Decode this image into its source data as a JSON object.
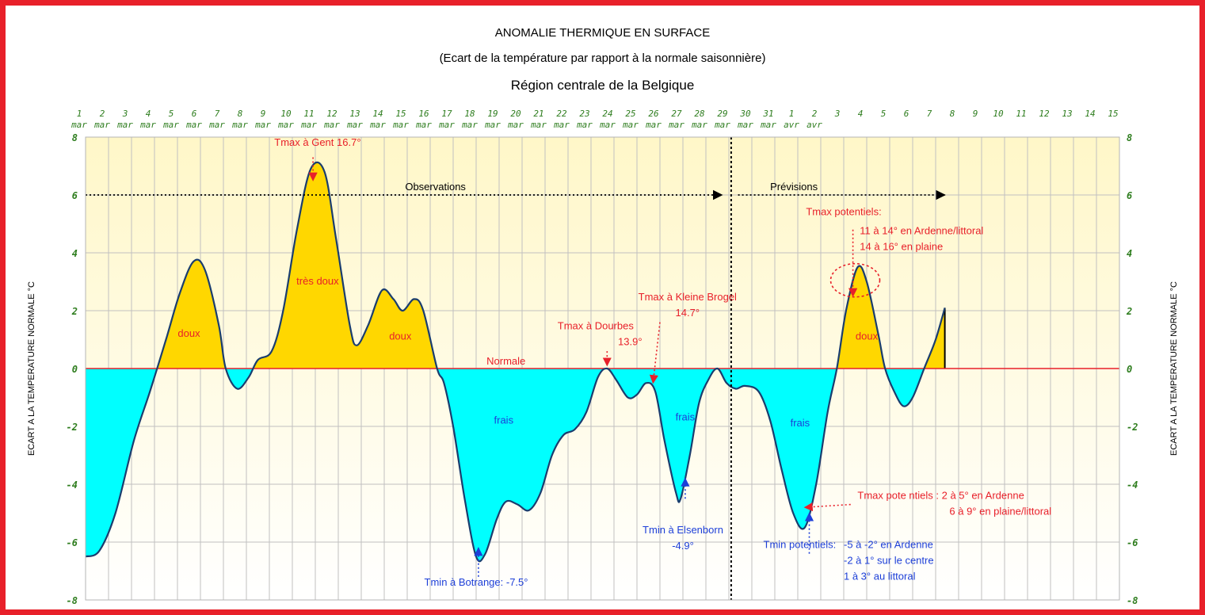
{
  "chart_data": {
    "type": "area",
    "title": "ANOMALIE THERMIQUE EN SURFACE",
    "subtitle": "(Ecart de la température par rapport à la normale saisonnière)",
    "region": "Région centrale de la Belgique",
    "ylabel": "ECART A LA TEMPERATURE NORMALE °C",
    "ylim": [
      -8,
      8
    ],
    "y_ticks": [
      "8",
      "6",
      "4",
      "2",
      "0",
      "-2",
      "-4",
      "-6",
      "-8"
    ],
    "x_days": [
      {
        "day": "1",
        "month": "mar"
      },
      {
        "day": "2",
        "month": "mar"
      },
      {
        "day": "3",
        "month": "mar"
      },
      {
        "day": "4",
        "month": "mar"
      },
      {
        "day": "5",
        "month": "mar"
      },
      {
        "day": "6",
        "month": "mar"
      },
      {
        "day": "7",
        "month": "mar"
      },
      {
        "day": "8",
        "month": "mar"
      },
      {
        "day": "9",
        "month": "mar"
      },
      {
        "day": "10",
        "month": "mar"
      },
      {
        "day": "11",
        "month": "mar"
      },
      {
        "day": "12",
        "month": "mar"
      },
      {
        "day": "13",
        "month": "mar"
      },
      {
        "day": "14",
        "month": "mar"
      },
      {
        "day": "15",
        "month": "mar"
      },
      {
        "day": "16",
        "month": "mar"
      },
      {
        "day": "17",
        "month": "mar"
      },
      {
        "day": "18",
        "month": "mar"
      },
      {
        "day": "19",
        "month": "mar"
      },
      {
        "day": "20",
        "month": "mar"
      },
      {
        "day": "21",
        "month": "mar"
      },
      {
        "day": "22",
        "month": "mar"
      },
      {
        "day": "23",
        "month": "mar"
      },
      {
        "day": "24",
        "month": "mar"
      },
      {
        "day": "25",
        "month": "mar"
      },
      {
        "day": "26",
        "month": "mar"
      },
      {
        "day": "27",
        "month": "mar"
      },
      {
        "day": "28",
        "month": "mar"
      },
      {
        "day": "29",
        "month": "mar"
      },
      {
        "day": "30",
        "month": "mar"
      },
      {
        "day": "31",
        "month": "mar"
      },
      {
        "day": "1",
        "month": "avr"
      },
      {
        "day": "2",
        "month": "avr"
      },
      {
        "day": "3",
        "month": ""
      },
      {
        "day": "4",
        "month": ""
      },
      {
        "day": "5",
        "month": ""
      },
      {
        "day": "6",
        "month": ""
      },
      {
        "day": "7",
        "month": ""
      },
      {
        "day": "8",
        "month": ""
      },
      {
        "day": "9",
        "month": ""
      },
      {
        "day": "10",
        "month": ""
      },
      {
        "day": "11",
        "month": ""
      },
      {
        "day": "12",
        "month": ""
      },
      {
        "day": "13",
        "month": ""
      },
      {
        "day": "14",
        "month": ""
      },
      {
        "day": "15",
        "month": ""
      }
    ],
    "series": [
      {
        "name": "Ecart",
        "points": [
          [
            1,
            -6.5
          ],
          [
            1.6,
            -6.3
          ],
          [
            2.3,
            -5.0
          ],
          [
            3.1,
            -2.5
          ],
          [
            3.8,
            -0.8
          ],
          [
            4.5,
            1.0
          ],
          [
            5.1,
            2.6
          ],
          [
            5.7,
            3.7
          ],
          [
            6.2,
            3.4
          ],
          [
            6.8,
            1.5
          ],
          [
            7.1,
            0.0
          ],
          [
            7.6,
            -0.7
          ],
          [
            8.1,
            -0.3
          ],
          [
            8.5,
            0.3
          ],
          [
            9.1,
            0.6
          ],
          [
            9.6,
            2.0
          ],
          [
            10.2,
            4.8
          ],
          [
            10.8,
            6.9
          ],
          [
            11.4,
            6.8
          ],
          [
            11.9,
            4.5
          ],
          [
            12.5,
            1.5
          ],
          [
            12.8,
            0.8
          ],
          [
            13.3,
            1.5
          ],
          [
            13.9,
            2.7
          ],
          [
            14.4,
            2.4
          ],
          [
            14.8,
            2.0
          ],
          [
            15.3,
            2.4
          ],
          [
            15.7,
            2.0
          ],
          [
            16.3,
            0.0
          ],
          [
            16.6,
            -0.5
          ],
          [
            17.0,
            -2.0
          ],
          [
            17.5,
            -4.5
          ],
          [
            18.0,
            -6.5
          ],
          [
            18.4,
            -6.4
          ],
          [
            18.9,
            -5.2
          ],
          [
            19.3,
            -4.6
          ],
          [
            19.8,
            -4.7
          ],
          [
            20.3,
            -4.9
          ],
          [
            20.8,
            -4.3
          ],
          [
            21.3,
            -3.0
          ],
          [
            21.8,
            -2.3
          ],
          [
            22.3,
            -2.1
          ],
          [
            22.8,
            -1.5
          ],
          [
            23.3,
            -0.3
          ],
          [
            23.7,
            0.0
          ],
          [
            24.1,
            -0.4
          ],
          [
            24.6,
            -1.0
          ],
          [
            25.0,
            -0.9
          ],
          [
            25.4,
            -0.5
          ],
          [
            25.8,
            -0.8
          ],
          [
            26.2,
            -2.5
          ],
          [
            26.7,
            -4.3
          ],
          [
            26.9,
            -4.5
          ],
          [
            27.3,
            -3.0
          ],
          [
            27.7,
            -1.2
          ],
          [
            28.1,
            -0.4
          ],
          [
            28.5,
            0.0
          ],
          [
            28.9,
            -0.5
          ],
          [
            29.3,
            -0.7
          ],
          [
            29.7,
            -0.6
          ],
          [
            30.3,
            -0.8
          ],
          [
            30.8,
            -1.8
          ],
          [
            31.3,
            -3.5
          ],
          [
            31.8,
            -5.0
          ],
          [
            32.3,
            -5.5
          ],
          [
            32.8,
            -4.0
          ],
          [
            33.3,
            -1.5
          ],
          [
            33.7,
            0.0
          ],
          [
            34.1,
            2.0
          ],
          [
            34.6,
            3.5
          ],
          [
            35.0,
            3.0
          ],
          [
            35.5,
            1.2
          ],
          [
            35.8,
            0.0
          ],
          [
            36.2,
            -0.8
          ],
          [
            36.6,
            -1.3
          ],
          [
            37.0,
            -1.0
          ],
          [
            37.5,
            0.0
          ],
          [
            38.0,
            1.0
          ],
          [
            38.4,
            2.1
          ]
        ]
      }
    ],
    "normal_label": "Normale",
    "sections": [
      {
        "label": "Observations",
        "from_day": 1,
        "to_day": 28.7
      },
      {
        "label": "Prévisions",
        "from_day": 29.4,
        "to_day": 38.4
      }
    ],
    "separator_day": 29.1,
    "region_labels": [
      {
        "text": "doux",
        "day": 5.5,
        "value": 1.1,
        "color": "#e8202a"
      },
      {
        "text": "très doux",
        "day": 11.1,
        "value": 2.9,
        "color": "#e8202a"
      },
      {
        "text": "doux",
        "day": 14.7,
        "value": 1.0,
        "color": "#e8202a"
      },
      {
        "text": "frais",
        "day": 19.2,
        "value": -1.9,
        "color": "#1d3fd8"
      },
      {
        "text": "frais",
        "day": 27.1,
        "value": -1.8,
        "color": "#1d3fd8"
      },
      {
        "text": "frais",
        "day": 32.1,
        "value": -2.0,
        "color": "#1d3fd8"
      },
      {
        "text": "doux",
        "day": 35.0,
        "value": 1.0,
        "color": "#e8202a"
      }
    ],
    "annotations": [
      {
        "lines": [
          "Tmax à Gent 16.7°"
        ],
        "color": "#e8202a",
        "day": 11.1,
        "value": 7.7,
        "anchor": "middle",
        "arrow_from": [
          10.9,
          7.3
        ],
        "arrow_to": [
          10.9,
          6.5
        ]
      },
      {
        "lines": [
          "Tmax à Dourbes",
          "13.9°"
        ],
        "color": "#e8202a",
        "day": 23.2,
        "value": 1.35,
        "anchor": "middle",
        "arrow_from": [
          23.7,
          0.6
        ],
        "arrow_to": [
          23.7,
          0.1
        ],
        "line_dx": [
          0,
          1.5
        ]
      },
      {
        "lines": [
          "Tmax à Kleine Brogel",
          "14.7°"
        ],
        "color": "#e8202a",
        "day": 27.2,
        "value": 2.35,
        "anchor": "middle",
        "arrow_from": [
          26.0,
          1.6
        ],
        "arrow_to": [
          25.7,
          -0.5
        ]
      },
      {
        "lines": [
          "Tmax potentiels:"
        ],
        "color": "#e8202a",
        "day": 34.0,
        "value": 5.3,
        "anchor": "middle",
        "arrow_from": [
          34.4,
          4.8
        ],
        "arrow_to": [
          34.4,
          2.5
        ]
      },
      {
        "lines": [
          "11 à 14° en Ardenne/littoral",
          "14 à 16° en plaine"
        ],
        "color": "#e8202a",
        "day": 34.7,
        "value": 4.65,
        "anchor": "start"
      },
      {
        "lines": [
          "Tmin à Botrange: -7.5°"
        ],
        "color": "#1d3fd8",
        "day": 18.0,
        "value": -7.5,
        "anchor": "middle",
        "arrow_from": [
          18.1,
          -7.2
        ],
        "arrow_to": [
          18.1,
          -6.2
        ]
      },
      {
        "lines": [
          "Tmin à Elsenborn",
          "-4.9°"
        ],
        "color": "#1d3fd8",
        "day": 27.0,
        "value": -5.7,
        "anchor": "middle",
        "arrow_from": [
          27.1,
          -4.5
        ],
        "arrow_to": [
          27.1,
          -3.8
        ]
      },
      {
        "lines": [
          "Tmax pote ntiels  : 2 à 5° en Ardenne",
          "6 à 9° en plaine/littoral"
        ],
        "color": "#e8202a",
        "day": 34.6,
        "value": -4.5,
        "anchor": "start",
        "line_dx": [
          0,
          4.0
        ],
        "arrow_from": [
          34.3,
          -4.7
        ],
        "arrow_to": [
          32.3,
          -4.8
        ]
      },
      {
        "lines": [
          "Tmin potentiels:"
        ],
        "color": "#1d3fd8",
        "day": 30.5,
        "value": -6.2,
        "anchor": "start",
        "arrow_from": [
          32.5,
          -6.4
        ],
        "arrow_to": [
          32.5,
          -5.0
        ]
      },
      {
        "lines": [
          "-5 à -2° en Ardenne",
          "-2 à 1° sur le centre",
          "1 à 3° au littoral"
        ],
        "color": "#1d3fd8",
        "day": 34.0,
        "value": -6.2,
        "anchor": "start"
      }
    ],
    "highlight_ellipse": {
      "day": 34.5,
      "value": 3.05,
      "color": "#e8202a"
    },
    "grid": true,
    "colors": {
      "positive_fill": "#ffd700",
      "negative_fill": "#00ffff",
      "curve": "#1a3d6e",
      "normal_line": "#e8202a",
      "plot_background_top": "#fff7c8",
      "plot_background_bottom": "#ffffff",
      "grid": "#c0c0c0",
      "tick_labels": "#2e7d1e",
      "frame": "#e8202a"
    }
  }
}
